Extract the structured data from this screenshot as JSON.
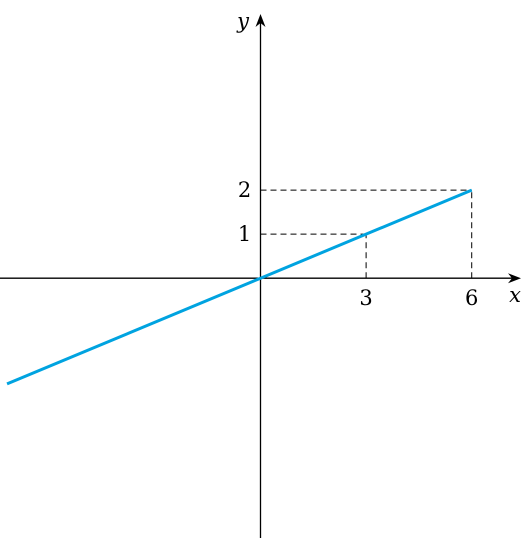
{
  "chart_data": {
    "type": "line",
    "x_label": "x",
    "y_label": "y",
    "x": [
      -7.2,
      0,
      3,
      6
    ],
    "series": [
      {
        "color": "#00a3e0",
        "values": [
          -2.4,
          0,
          1,
          2
        ]
      }
    ],
    "xlim": [
      -7.4,
      7.4
    ],
    "ylim": [
      -5.9,
      6
    ],
    "xticks": [
      3,
      6
    ],
    "yticks": [
      1,
      2
    ]
  }
}
